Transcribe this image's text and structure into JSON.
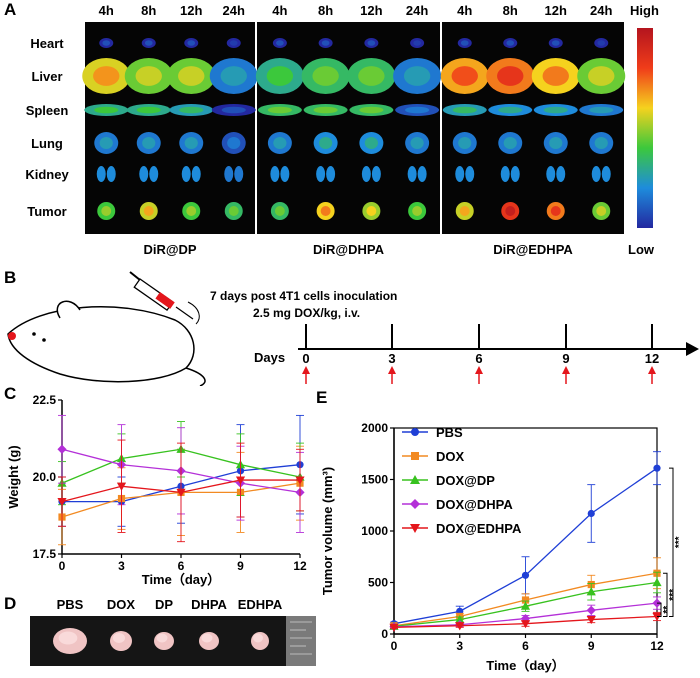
{
  "panels": {
    "A": "A",
    "B": "B",
    "C": "C",
    "D": "D",
    "E": "E"
  },
  "imaging": {
    "timepoints": [
      "4h",
      "8h",
      "12h",
      "24h"
    ],
    "organs": [
      "Heart",
      "Liver",
      "Spleen",
      "Lung",
      "Kidney",
      "Tumor"
    ],
    "groups": [
      "DiR@DP",
      "DiR@DHPA",
      "DiR@EDHPA"
    ],
    "scale_high": "High",
    "scale_low": "Low",
    "intensity": [
      [
        [
          0.1,
          0.1,
          0.1,
          0.05
        ],
        [
          0.72,
          0.6,
          0.6,
          0.3
        ],
        [
          0.45,
          0.45,
          0.4,
          0.1
        ],
        [
          0.3,
          0.3,
          0.3,
          0.2
        ],
        [
          0.25,
          0.25,
          0.25,
          0.2
        ],
        [
          0.55,
          0.7,
          0.55,
          0.5
        ]
      ],
      [
        [
          0.1,
          0.1,
          0.1,
          0.05
        ],
        [
          0.45,
          0.5,
          0.5,
          0.3
        ],
        [
          0.5,
          0.5,
          0.5,
          0.2
        ],
        [
          0.3,
          0.35,
          0.35,
          0.3
        ],
        [
          0.25,
          0.25,
          0.25,
          0.25
        ],
        [
          0.5,
          0.75,
          0.65,
          0.55
        ]
      ],
      [
        [
          0.1,
          0.1,
          0.1,
          0.05
        ],
        [
          0.8,
          0.85,
          0.75,
          0.6
        ],
        [
          0.4,
          0.35,
          0.35,
          0.3
        ],
        [
          0.3,
          0.3,
          0.3,
          0.3
        ],
        [
          0.25,
          0.25,
          0.25,
          0.25
        ],
        [
          0.7,
          0.95,
          0.85,
          0.6
        ]
      ]
    ]
  },
  "schedule": {
    "note_line1": "7 days post 4T1 cells inoculation",
    "note_line2": "2.5 mg DOX/kg, i.v.",
    "axis_label": "Days",
    "days": [
      "0",
      "3",
      "6",
      "9",
      "12"
    ]
  },
  "photo": {
    "labels": [
      "PBS",
      "DOX",
      "DP",
      "DHPA",
      "EDHPA"
    ]
  },
  "colors": {
    "PBS": "#1f3fd6",
    "DOX": "#f28a22",
    "DOX@DP": "#38c21f",
    "DOX@DHPA": "#b430d8",
    "DOX@EDHPA": "#e4161c",
    "arrow": "#e4161c"
  },
  "chart_data": [
    {
      "id": "C",
      "type": "line",
      "title": "",
      "xlabel": "Time（day）",
      "ylabel": "Weight (g)",
      "x": [
        0,
        3,
        6,
        9,
        12
      ],
      "xticks": [
        "0",
        "3",
        "6",
        "9",
        "12"
      ],
      "yticks": [
        "17.5",
        "20.0",
        "22.5"
      ],
      "xlim": [
        0,
        12
      ],
      "ylim": [
        17.5,
        22.5
      ],
      "series": [
        {
          "name": "PBS",
          "values": [
            19.2,
            19.2,
            19.7,
            20.2,
            20.4
          ],
          "err": [
            0.8,
            0.8,
            1.2,
            1.5,
            1.6
          ]
        },
        {
          "name": "DOX",
          "values": [
            18.7,
            19.3,
            19.5,
            19.5,
            19.8
          ],
          "err": [
            0.9,
            1.0,
            1.4,
            1.3,
            1.2
          ]
        },
        {
          "name": "DOX@DP",
          "values": [
            19.8,
            20.6,
            20.9,
            20.4,
            20.0
          ],
          "err": [
            0.7,
            0.8,
            0.9,
            1.0,
            1.1
          ]
        },
        {
          "name": "DOX@DHPA",
          "values": [
            20.9,
            20.4,
            20.2,
            19.8,
            19.5
          ],
          "err": [
            1.1,
            1.3,
            1.4,
            1.2,
            1.3
          ]
        },
        {
          "name": "DOX@EDHPA",
          "values": [
            19.2,
            19.7,
            19.5,
            19.9,
            19.9
          ],
          "err": [
            0.8,
            1.5,
            1.6,
            1.2,
            1.0
          ]
        }
      ]
    },
    {
      "id": "E",
      "type": "line",
      "title": "",
      "xlabel": "Time（day）",
      "ylabel": "Tumor volume (mm³)",
      "x": [
        0,
        3,
        6,
        9,
        12
      ],
      "xticks": [
        "0",
        "3",
        "6",
        "9",
        "12"
      ],
      "yticks": [
        "0",
        "500",
        "1000",
        "1500",
        "2000"
      ],
      "xlim": [
        0,
        12
      ],
      "ylim": [
        0,
        2000
      ],
      "legend": [
        "PBS",
        "DOX",
        "DOX@DP",
        "DOX@DHPA",
        "DOX@EDHPA"
      ],
      "series": [
        {
          "name": "PBS",
          "values": [
            100,
            220,
            570,
            1170,
            1610
          ],
          "err": [
            15,
            50,
            180,
            280,
            160
          ]
        },
        {
          "name": "DOX",
          "values": [
            80,
            170,
            330,
            480,
            590
          ],
          "err": [
            10,
            30,
            60,
            90,
            150
          ]
        },
        {
          "name": "DOX@DP",
          "values": [
            75,
            140,
            270,
            410,
            500
          ],
          "err": [
            10,
            25,
            50,
            80,
            100
          ]
        },
        {
          "name": "DOX@DHPA",
          "values": [
            70,
            90,
            150,
            230,
            300
          ],
          "err": [
            10,
            20,
            30,
            50,
            60
          ]
        },
        {
          "name": "DOX@EDHPA",
          "values": [
            65,
            80,
            100,
            140,
            170
          ],
          "err": [
            10,
            15,
            25,
            30,
            40
          ]
        }
      ],
      "significance": [
        "***",
        "***",
        "**"
      ]
    }
  ]
}
